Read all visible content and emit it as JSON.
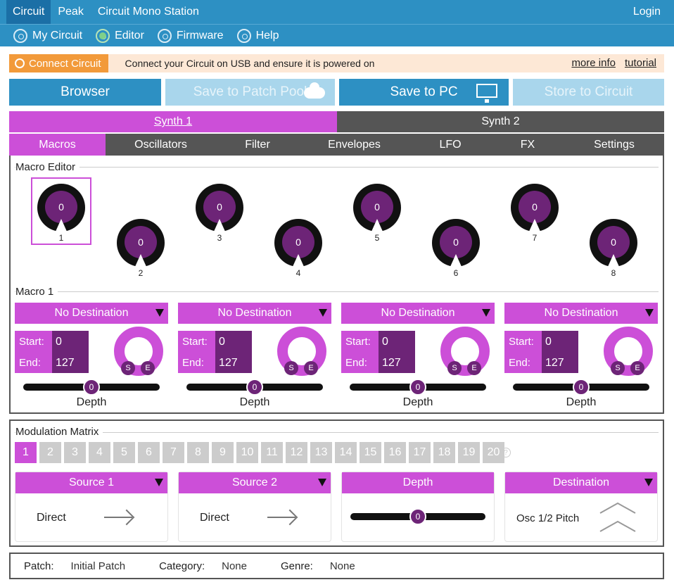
{
  "topnav": {
    "items": [
      "Circuit",
      "Peak",
      "Circuit Mono Station"
    ],
    "login": "Login"
  },
  "subnav": {
    "items": [
      "My Circuit",
      "Editor",
      "Firmware",
      "Help"
    ]
  },
  "notice": {
    "button": "Connect Circuit",
    "message": "Connect your Circuit on USB and ensure it is powered on",
    "more_info": "more info",
    "tutorial": "tutorial"
  },
  "actions": {
    "browser": "Browser",
    "patch_pool": "Save to Patch Pool",
    "save_pc": "Save to PC",
    "store": "Store to Circuit"
  },
  "synth_tabs": [
    "Synth 1",
    "Synth 2"
  ],
  "sub_tabs": [
    "Macros",
    "Oscillators",
    "Filter",
    "Envelopes",
    "LFO",
    "FX",
    "Settings"
  ],
  "macro_editor": {
    "title": "Macro Editor",
    "knobs": [
      {
        "label": "1",
        "value": "0"
      },
      {
        "label": "2",
        "value": "0"
      },
      {
        "label": "3",
        "value": "0"
      },
      {
        "label": "4",
        "value": "0"
      },
      {
        "label": "5",
        "value": "0"
      },
      {
        "label": "6",
        "value": "0"
      },
      {
        "label": "7",
        "value": "0"
      },
      {
        "label": "8",
        "value": "0"
      }
    ]
  },
  "macro": {
    "title": "Macro 1",
    "start_label": "Start:",
    "end_label": "End:",
    "depth_label": "Depth",
    "s": "S",
    "e": "E",
    "destinations": [
      {
        "name": "No Destination",
        "start": "0",
        "end": "127",
        "depth": "0"
      },
      {
        "name": "No Destination",
        "start": "0",
        "end": "127",
        "depth": "0"
      },
      {
        "name": "No Destination",
        "start": "0",
        "end": "127",
        "depth": "0"
      },
      {
        "name": "No Destination",
        "start": "0",
        "end": "127",
        "depth": "0"
      }
    ]
  },
  "mod_matrix": {
    "title": "Modulation Matrix",
    "slots": [
      "1",
      "2",
      "3",
      "4",
      "5",
      "6",
      "7",
      "8",
      "9",
      "10",
      "11",
      "12",
      "13",
      "14",
      "15",
      "16",
      "17",
      "18",
      "19",
      "20"
    ],
    "help": "?",
    "source1": {
      "header": "Source 1",
      "value": "Direct"
    },
    "source2": {
      "header": "Source 2",
      "value": "Direct"
    },
    "depth": {
      "header": "Depth",
      "value": "0"
    },
    "destination": {
      "header": "Destination",
      "value": "Osc 1/2 Pitch"
    }
  },
  "footer": {
    "patch_label": "Patch:",
    "patch": "Initial Patch",
    "category_label": "Category:",
    "category": "None",
    "genre_label": "Genre:",
    "genre": "None"
  },
  "colors": {
    "blue": "#2d90c3",
    "magenta": "#cc4fd8",
    "purple": "#6d2477",
    "orange": "#f29a3a"
  }
}
